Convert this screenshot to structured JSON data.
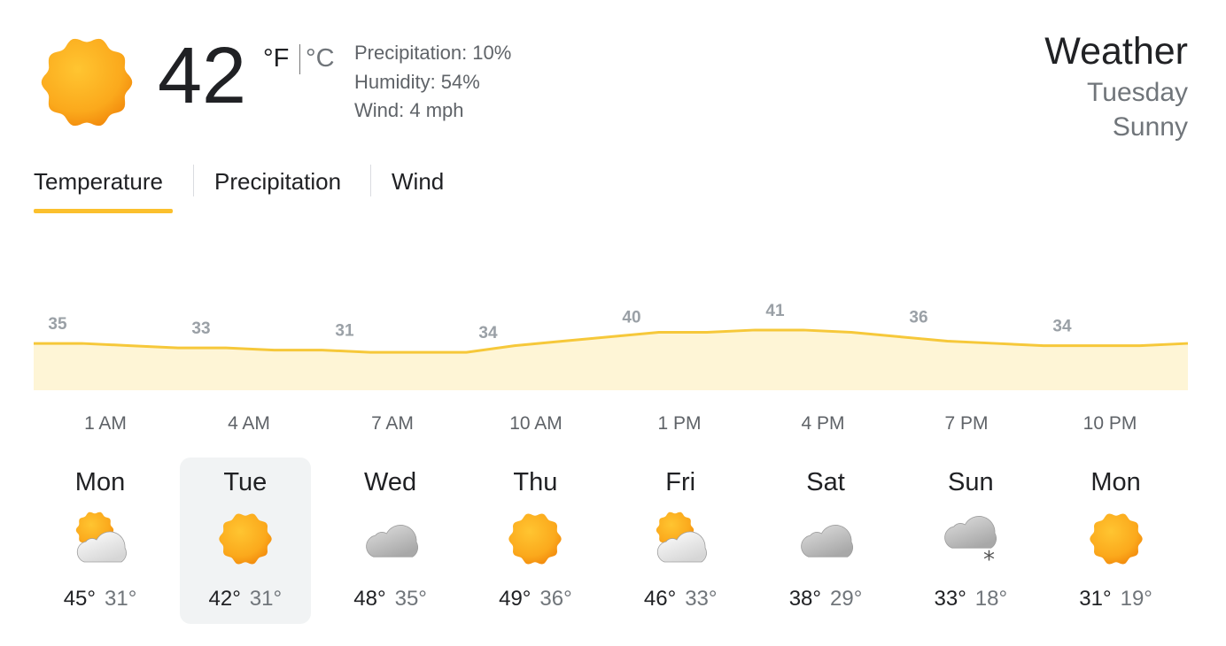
{
  "current": {
    "icon": "sun-icon",
    "temperature": "42",
    "unit_f": "°F",
    "unit_c": "°C",
    "precipitation": "Precipitation: 10%",
    "humidity": "Humidity: 54%",
    "wind": "Wind: 4 mph"
  },
  "header": {
    "title": "Weather",
    "day": "Tuesday",
    "condition": "Sunny"
  },
  "tabs": [
    {
      "label": "Temperature",
      "selected": true
    },
    {
      "label": "Precipitation",
      "selected": false
    },
    {
      "label": "Wind",
      "selected": false
    }
  ],
  "colors": {
    "accent": "#fbc02d",
    "line": "#f6c83a",
    "fill": "#fef5d6"
  },
  "chart_data": {
    "type": "area",
    "hourly_values": [
      35,
      35,
      34,
      33,
      33,
      32,
      32,
      31,
      31,
      31,
      34,
      36,
      38,
      40,
      40,
      41,
      41,
      40,
      38,
      36,
      35,
      34,
      34,
      34,
      35
    ],
    "labels": [
      "35",
      "33",
      "31",
      "34",
      "40",
      "41",
      "36",
      "34"
    ],
    "time_labels": [
      "1 AM",
      "4 AM",
      "7 AM",
      "10 AM",
      "1 PM",
      "4 PM",
      "7 PM",
      "10 PM"
    ],
    "ylim": [
      14,
      50
    ]
  },
  "days": [
    {
      "name": "Mon",
      "icon": "partly-cloudy",
      "high": "45°",
      "low": "31°",
      "selected": false
    },
    {
      "name": "Tue",
      "icon": "sun",
      "high": "42°",
      "low": "31°",
      "selected": true
    },
    {
      "name": "Wed",
      "icon": "cloudy",
      "high": "48°",
      "low": "35°",
      "selected": false
    },
    {
      "name": "Thu",
      "icon": "sun",
      "high": "49°",
      "low": "36°",
      "selected": false
    },
    {
      "name": "Fri",
      "icon": "partly-cloudy",
      "high": "46°",
      "low": "33°",
      "selected": false
    },
    {
      "name": "Sat",
      "icon": "cloudy",
      "high": "38°",
      "low": "29°",
      "selected": false
    },
    {
      "name": "Sun",
      "icon": "snow",
      "high": "33°",
      "low": "18°",
      "selected": false
    },
    {
      "name": "Mon",
      "icon": "sun",
      "high": "31°",
      "low": "19°",
      "selected": false
    }
  ]
}
